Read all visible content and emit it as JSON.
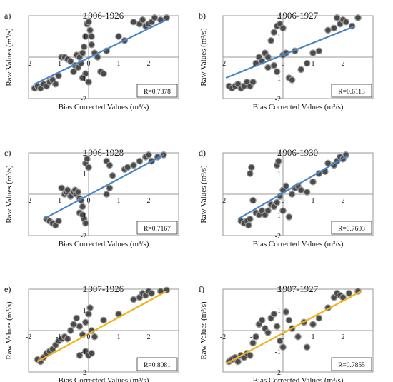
{
  "figure": {
    "colors": {
      "points": "#4a4a4a",
      "point_edge": "#9a9a9a",
      "blue_fit": "#4a86c5",
      "yellow_fit": "#f2b21a",
      "axis": "#9a9a9a"
    }
  },
  "chart_data": [
    {
      "panel_label": "a)",
      "title": "1906-1926",
      "type": "scatter",
      "xlabel": "Bias Corrected Values (m³/s)",
      "ylabel": "Raw Values (m³/s)",
      "xlim": [
        -2,
        3
      ],
      "ylim": [
        -2,
        2
      ],
      "x_ticks": [
        "-2",
        "-1",
        "0",
        "1",
        "2"
      ],
      "y_ticks": [
        "-2",
        "-1",
        "1",
        "2"
      ],
      "annotation": "R=0.7378",
      "fit_color": "blue",
      "fit_line": {
        "x": [
          -1.8,
          2.6
        ],
        "y": [
          -1.3,
          1.8
        ]
      },
      "points": [
        [
          -1.8,
          -1.5
        ],
        [
          -1.7,
          -1.4
        ],
        [
          -1.6,
          -1.5
        ],
        [
          -1.5,
          -1.3
        ],
        [
          -1.4,
          -1.4
        ],
        [
          -1.3,
          -1.2
        ],
        [
          -1.2,
          -1.1
        ],
        [
          -1.1,
          -1.3
        ],
        [
          -1.0,
          -0.9
        ],
        [
          -0.9,
          0.0
        ],
        [
          -0.8,
          0.0
        ],
        [
          -0.7,
          -0.1
        ],
        [
          -0.6,
          -0.2
        ],
        [
          -0.5,
          -0.7
        ],
        [
          -0.45,
          -0.4
        ],
        [
          -0.4,
          0.1
        ],
        [
          -0.35,
          -0.5
        ],
        [
          -0.3,
          0.0
        ],
        [
          -0.25,
          -0.3
        ],
        [
          -0.2,
          0.2
        ],
        [
          -0.15,
          0.5
        ],
        [
          -0.1,
          1.0
        ],
        [
          -0.05,
          1.6
        ],
        [
          0.0,
          1.7
        ],
        [
          0.05,
          1.3
        ],
        [
          0.1,
          1.0
        ],
        [
          -0.1,
          -0.8
        ],
        [
          0.0,
          -1.2
        ],
        [
          -0.2,
          -1.0
        ],
        [
          0.1,
          0.6
        ],
        [
          0.2,
          0.2
        ],
        [
          0.3,
          0.0
        ],
        [
          0.4,
          -0.7
        ],
        [
          0.5,
          -0.8
        ],
        [
          0.6,
          0.3
        ],
        [
          1.0,
          1.0
        ],
        [
          1.2,
          0.8
        ],
        [
          1.5,
          1.7
        ],
        [
          1.7,
          1.6
        ],
        [
          1.8,
          1.8
        ],
        [
          1.9,
          1.5
        ],
        [
          2.0,
          1.6
        ],
        [
          2.1,
          1.7
        ],
        [
          2.2,
          1.9
        ],
        [
          2.4,
          1.8
        ],
        [
          2.6,
          1.9
        ]
      ]
    },
    {
      "panel_label": "b)",
      "title": "1906-1927",
      "type": "scatter",
      "xlabel": "Bias Corrected Values (m³/s)",
      "ylabel": "Raw Values (m³/s)",
      "xlim": [
        -2,
        3
      ],
      "ylim": [
        -2,
        2
      ],
      "x_ticks": [
        "-2",
        "-1",
        "0",
        "1",
        "2"
      ],
      "y_ticks": [
        "-2",
        "-1",
        "1",
        "2"
      ],
      "annotation": "R=0.6113",
      "fit_color": "blue",
      "fit_line": {
        "x": [
          -1.9,
          2.4
        ],
        "y": [
          -1.0,
          1.5
        ]
      },
      "points": [
        [
          -1.8,
          -1.4
        ],
        [
          -1.7,
          -1.5
        ],
        [
          -1.6,
          -1.4
        ],
        [
          -1.5,
          -1.3
        ],
        [
          -1.4,
          -1.5
        ],
        [
          -1.3,
          -1.4
        ],
        [
          -1.2,
          -1.2
        ],
        [
          -1.1,
          -1.4
        ],
        [
          -1.0,
          -1.2
        ],
        [
          -0.9,
          -0.3
        ],
        [
          -0.8,
          0.0
        ],
        [
          -0.7,
          -0.2
        ],
        [
          -0.6,
          0.2
        ],
        [
          -0.5,
          0.0
        ],
        [
          -0.4,
          0.8
        ],
        [
          -0.3,
          1.2
        ],
        [
          -0.2,
          1.5
        ],
        [
          -0.1,
          1.6
        ],
        [
          0.0,
          1.4
        ],
        [
          -0.5,
          -0.5
        ],
        [
          -0.3,
          -0.4
        ],
        [
          -0.2,
          -0.7
        ],
        [
          0.0,
          0.1
        ],
        [
          0.1,
          0.2
        ],
        [
          0.2,
          -1.0
        ],
        [
          0.3,
          -1.1
        ],
        [
          0.4,
          0.3
        ],
        [
          0.6,
          -0.6
        ],
        [
          0.8,
          -0.3
        ],
        [
          1.0,
          0.2
        ],
        [
          1.2,
          0.3
        ],
        [
          1.5,
          1.3
        ],
        [
          1.7,
          1.4
        ],
        [
          1.8,
          1.9
        ],
        [
          1.9,
          1.6
        ],
        [
          2.0,
          1.8
        ],
        [
          2.1,
          1.7
        ],
        [
          2.3,
          1.5
        ],
        [
          2.5,
          1.9
        ]
      ]
    },
    {
      "panel_label": "c)",
      "title": "1906-1928",
      "type": "scatter",
      "xlabel": "Bias Corrected Values (m³/s)",
      "ylabel": "Raw Values (m³/s)",
      "xlim": [
        -2,
        3
      ],
      "ylim": [
        -2,
        2
      ],
      "x_ticks": [
        "-2",
        "-1",
        "0",
        "1",
        "2"
      ],
      "y_ticks": [
        "-2",
        "-1",
        "1",
        "2"
      ],
      "annotation": "R=0.7167",
      "fit_color": "blue",
      "fit_line": {
        "x": [
          -1.5,
          2.5
        ],
        "y": [
          -1.2,
          1.9
        ]
      },
      "points": [
        [
          -1.4,
          -1.2
        ],
        [
          -1.3,
          -1.3
        ],
        [
          -1.2,
          -1.4
        ],
        [
          -1.1,
          -1.5
        ],
        [
          -1.0,
          -1.3
        ],
        [
          -0.9,
          0.3
        ],
        [
          -0.8,
          0.0
        ],
        [
          -0.75,
          0.1
        ],
        [
          -0.7,
          0.2
        ],
        [
          -0.6,
          -0.1
        ],
        [
          -0.5,
          0.1
        ],
        [
          -0.45,
          0.2
        ],
        [
          -0.4,
          0.0
        ],
        [
          -0.35,
          0.1
        ],
        [
          -0.3,
          -0.2
        ],
        [
          -0.25,
          -0.3
        ],
        [
          -0.2,
          -0.6
        ],
        [
          -0.15,
          -1.2
        ],
        [
          -0.1,
          -1.4
        ],
        [
          -0.1,
          1.5
        ],
        [
          -0.05,
          1.7
        ],
        [
          0.0,
          1.3
        ],
        [
          -0.3,
          -0.9
        ],
        [
          -0.2,
          -1.0
        ],
        [
          0.6,
          1.6
        ],
        [
          0.7,
          1.4
        ],
        [
          0.8,
          0.9
        ],
        [
          0.6,
          0.0
        ],
        [
          0.7,
          0.3
        ],
        [
          1.2,
          1.2
        ],
        [
          1.3,
          1.3
        ],
        [
          1.5,
          1.4
        ],
        [
          1.7,
          1.6
        ],
        [
          1.9,
          1.8
        ],
        [
          2.0,
          1.9
        ],
        [
          2.1,
          1.6
        ],
        [
          2.3,
          1.8
        ],
        [
          2.5,
          1.9
        ]
      ]
    },
    {
      "panel_label": "d)",
      "title": "1906-1930",
      "type": "scatter",
      "xlabel": "Bias Corrected Values (m³/s)",
      "ylabel": "Raw Values (m³/s)",
      "xlim": [
        -2,
        3
      ],
      "ylim": [
        -2,
        2
      ],
      "x_ticks": [
        "-2",
        "-1",
        "0",
        "1",
        "2"
      ],
      "y_ticks": [
        "-2",
        "-1",
        "1",
        "2"
      ],
      "annotation": "R=0.7603",
      "fit_color": "blue",
      "fit_line": {
        "x": [
          -1.5,
          2.2
        ],
        "y": [
          -1.2,
          1.9
        ]
      },
      "points": [
        [
          -1.4,
          -1.3
        ],
        [
          -1.3,
          -1.4
        ],
        [
          -1.2,
          -1.3
        ],
        [
          -1.15,
          -1.5
        ],
        [
          -1.1,
          -1.2
        ],
        [
          -1.1,
          1.0
        ],
        [
          -1.05,
          1.3
        ],
        [
          -1.0,
          -0.3
        ],
        [
          -0.9,
          -0.9
        ],
        [
          -0.8,
          -1.0
        ],
        [
          -0.7,
          -0.8
        ],
        [
          -0.6,
          -1.0
        ],
        [
          -0.5,
          -0.8
        ],
        [
          -0.4,
          -0.5
        ],
        [
          -0.3,
          -0.6
        ],
        [
          -0.2,
          -0.4
        ],
        [
          -0.1,
          -0.1
        ],
        [
          0.0,
          0.2
        ],
        [
          0.1,
          0.4
        ],
        [
          -0.2,
          1.4
        ],
        [
          -0.15,
          1.6
        ],
        [
          0.0,
          -0.8
        ],
        [
          0.2,
          -1.1
        ],
        [
          0.3,
          0.0
        ],
        [
          0.4,
          0.3
        ],
        [
          0.5,
          0.4
        ],
        [
          0.6,
          0.2
        ],
        [
          0.8,
          0.1
        ],
        [
          1.0,
          0.6
        ],
        [
          1.2,
          1.0
        ],
        [
          1.4,
          1.1
        ],
        [
          1.5,
          1.5
        ],
        [
          1.7,
          1.4
        ],
        [
          1.8,
          1.6
        ],
        [
          1.9,
          1.8
        ],
        [
          2.0,
          1.7
        ],
        [
          2.1,
          1.9
        ]
      ]
    },
    {
      "panel_label": "e)",
      "title": "1907-1926",
      "type": "scatter",
      "xlabel": "Bias Corrected Values (m³/s)",
      "ylabel": "Raw Values (m³/s)",
      "xlim": [
        -2,
        3
      ],
      "ylim": [
        -2,
        2
      ],
      "x_ticks": [
        "-2",
        "-1",
        "0",
        "1",
        "2"
      ],
      "y_ticks": [
        "-2",
        "-1",
        "1",
        "2"
      ],
      "annotation": "R=0.8081",
      "fit_color": "yellow",
      "fit_line": {
        "x": [
          -1.7,
          2.6
        ],
        "y": [
          -1.5,
          1.9
        ]
      },
      "points": [
        [
          -1.7,
          -1.4
        ],
        [
          -1.6,
          -1.5
        ],
        [
          -1.5,
          -1.3
        ],
        [
          -1.4,
          -1.1
        ],
        [
          -1.3,
          -1.0
        ],
        [
          -1.2,
          -0.9
        ],
        [
          -1.1,
          -0.7
        ],
        [
          -1.0,
          -0.5
        ],
        [
          -0.9,
          -0.4
        ],
        [
          -0.8,
          -0.3
        ],
        [
          -0.7,
          -0.4
        ],
        [
          -0.6,
          0.0
        ],
        [
          -0.5,
          0.3
        ],
        [
          -0.4,
          0.6
        ],
        [
          -0.3,
          0.2
        ],
        [
          -0.2,
          -0.2
        ],
        [
          -0.1,
          0.4
        ],
        [
          0.0,
          0.8
        ],
        [
          0.05,
          1.1
        ],
        [
          0.1,
          0.0
        ],
        [
          -0.1,
          -1.0
        ],
        [
          0.0,
          -1.2
        ],
        [
          0.1,
          -1.1
        ],
        [
          -0.3,
          -1.2
        ],
        [
          0.2,
          -0.3
        ],
        [
          0.5,
          0.5
        ],
        [
          1.0,
          0.8
        ],
        [
          1.5,
          1.5
        ],
        [
          1.7,
          1.6
        ],
        [
          1.8,
          1.8
        ],
        [
          1.9,
          1.7
        ],
        [
          2.0,
          1.9
        ],
        [
          2.1,
          1.8
        ],
        [
          2.4,
          1.9
        ],
        [
          2.6,
          1.95
        ]
      ]
    },
    {
      "panel_label": "f)",
      "title": "1907-1927",
      "type": "scatter",
      "xlabel": "Bias Corrected Values (m³/s)",
      "ylabel": "Raw Values (m³/s)",
      "xlim": [
        -2,
        3
      ],
      "ylim": [
        -2,
        2
      ],
      "x_ticks": [
        "-2",
        "-1",
        "0",
        "1",
        "2"
      ],
      "y_ticks": [
        "-2",
        "-1",
        "1",
        "2"
      ],
      "annotation": "R=0.7855",
      "fit_color": "yellow",
      "fit_line": {
        "x": [
          -1.9,
          2.6
        ],
        "y": [
          -1.6,
          1.9
        ]
      },
      "points": [
        [
          -1.8,
          -1.5
        ],
        [
          -1.7,
          -1.4
        ],
        [
          -1.6,
          -1.3
        ],
        [
          -1.5,
          -1.5
        ],
        [
          -1.4,
          -1.2
        ],
        [
          -1.3,
          -1.3
        ],
        [
          -1.2,
          -1.1
        ],
        [
          -1.1,
          -1.2
        ],
        [
          -1.0,
          -0.6
        ],
        [
          -0.9,
          -0.3
        ],
        [
          -0.8,
          0.3
        ],
        [
          -0.7,
          0.5
        ],
        [
          -0.6,
          0.1
        ],
        [
          -0.5,
          -0.1
        ],
        [
          -0.4,
          0.6
        ],
        [
          -0.3,
          0.8
        ],
        [
          -0.2,
          0.2
        ],
        [
          -0.1,
          -0.5
        ],
        [
          0.0,
          -0.8
        ],
        [
          0.1,
          0.9
        ],
        [
          0.2,
          0.5
        ],
        [
          0.3,
          0.1
        ],
        [
          0.5,
          -0.3
        ],
        [
          0.7,
          0.4
        ],
        [
          0.8,
          -0.8
        ],
        [
          1.0,
          0.3
        ],
        [
          1.2,
          0.6
        ],
        [
          1.5,
          1.1
        ],
        [
          1.7,
          1.6
        ],
        [
          1.8,
          1.8
        ],
        [
          1.9,
          1.7
        ],
        [
          2.0,
          1.6
        ],
        [
          2.2,
          1.8
        ],
        [
          2.5,
          1.9
        ]
      ]
    }
  ]
}
